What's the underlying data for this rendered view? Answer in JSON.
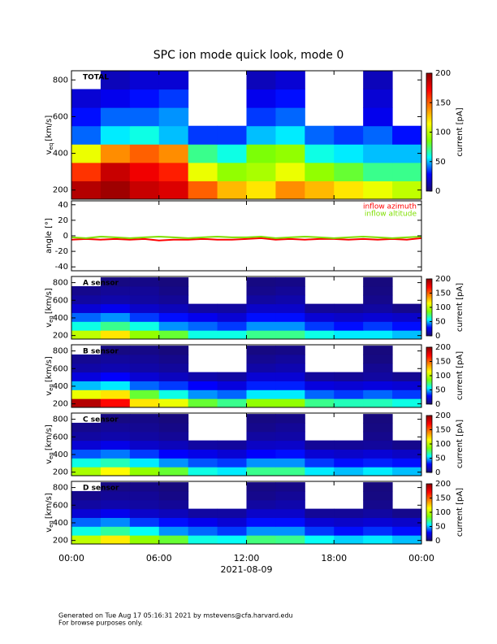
{
  "title": "SPC ion mode quick look, mode 0",
  "footer": [
    "Generated on Tue Aug 17 05:16:31 2021 by mstevens@cfa.harvard.edu",
    "For browse purposes only."
  ],
  "chart_data": [
    {
      "type": "heatmap",
      "label": "TOTAL",
      "ylabel": {
        "main": "v",
        "sub": "eq",
        "unit": "[km/s]"
      },
      "xlim": [
        0,
        24
      ],
      "xticks": [
        0,
        6,
        12,
        18,
        24
      ],
      "ylim": [
        150,
        850
      ],
      "yticks": [
        200,
        400,
        600,
        800
      ],
      "xbins": [
        0,
        2,
        4,
        6,
        8,
        10,
        12,
        14,
        16,
        18,
        20,
        22,
        24
      ],
      "ybins": [
        150,
        250,
        350,
        450,
        550,
        650,
        750,
        850
      ],
      "z": [
        [
          190,
          195,
          185,
          180,
          150,
          130,
          120,
          140,
          130,
          120,
          110,
          100
        ],
        [
          160,
          185,
          175,
          165,
          110,
          90,
          95,
          110,
          90,
          80,
          70,
          70
        ],
        [
          110,
          140,
          150,
          140,
          70,
          60,
          85,
          90,
          60,
          55,
          50,
          50
        ],
        [
          40,
          55,
          60,
          50,
          35,
          35,
          50,
          55,
          40,
          35,
          40,
          30
        ],
        [
          30,
          40,
          40,
          45,
          null,
          null,
          35,
          40,
          null,
          null,
          25,
          null
        ],
        [
          20,
          25,
          30,
          35,
          null,
          null,
          25,
          30,
          null,
          null,
          20,
          null
        ],
        [
          null,
          15,
          20,
          20,
          null,
          null,
          15,
          20,
          null,
          null,
          15,
          null
        ]
      ],
      "clim": [
        0,
        200
      ],
      "cticks": [
        0,
        50,
        100,
        150,
        200
      ],
      "clabel": "current [pA]",
      "colorscale": [
        "#1a0a6e",
        "#0000ff",
        "#00ffff",
        "#7fff00",
        "#ffff00",
        "#ff8000",
        "#ff0000",
        "#8b0000"
      ]
    },
    {
      "type": "line",
      "ylabel": "angle [°]",
      "xlim": [
        0,
        24
      ],
      "xticks": [
        0,
        6,
        12,
        18,
        24
      ],
      "ylim": [
        -45,
        45
      ],
      "yticks": [
        -40,
        -20,
        0,
        20,
        40
      ],
      "legend": "upper right",
      "x": [
        0,
        1,
        2,
        3,
        4,
        5,
        6,
        7,
        8,
        9,
        10,
        11,
        12,
        13,
        14,
        15,
        16,
        17,
        18,
        19,
        20,
        21,
        22,
        23,
        24
      ],
      "series": [
        {
          "name": "inflow azimuth",
          "color": "#ff0000",
          "values": [
            -5,
            -4,
            -5,
            -4,
            -5,
            -4,
            -6,
            -5,
            -5,
            -4,
            -5,
            -5,
            -4,
            -3,
            -5,
            -4,
            -5,
            -4,
            -4,
            -5,
            -4,
            -5,
            -4,
            -5,
            -3
          ]
        },
        {
          "name": "inflow altitude",
          "color": "#7fdf00",
          "values": [
            -2,
            -3,
            -1,
            -2,
            -3,
            -2,
            -1,
            -2,
            -3,
            -2,
            -1,
            -2,
            -2,
            -1,
            -3,
            -2,
            -1,
            -2,
            -3,
            -2,
            -1,
            -2,
            -3,
            -2,
            -1
          ]
        }
      ]
    },
    {
      "type": "heatmap",
      "label": "A sensor",
      "ylabel": {
        "main": "v",
        "sub": "eq",
        "unit": "[km/s]"
      },
      "xlim": [
        0,
        24
      ],
      "xticks": [
        0,
        6,
        12,
        18,
        24
      ],
      "ylim": [
        160,
        870
      ],
      "yticks": [
        200,
        400,
        600,
        800
      ],
      "xbins": [
        0,
        2,
        4,
        6,
        8,
        10,
        12,
        14,
        16,
        18,
        20,
        22,
        24
      ],
      "ybins": [
        160,
        260,
        360,
        460,
        560,
        660,
        760,
        860
      ],
      "z": [
        [
          100,
          120,
          90,
          80,
          60,
          60,
          70,
          70,
          60,
          55,
          55,
          50
        ],
        [
          60,
          70,
          60,
          45,
          40,
          35,
          45,
          45,
          35,
          30,
          35,
          30
        ],
        [
          40,
          45,
          35,
          30,
          25,
          20,
          30,
          30,
          20,
          18,
          20,
          18
        ],
        [
          20,
          25,
          18,
          15,
          10,
          10,
          18,
          18,
          8,
          8,
          10,
          6
        ],
        [
          10,
          12,
          10,
          8,
          null,
          null,
          10,
          12,
          null,
          null,
          6,
          null
        ],
        [
          6,
          8,
          8,
          5,
          null,
          null,
          6,
          8,
          null,
          null,
          4,
          null
        ],
        [
          null,
          4,
          5,
          3,
          null,
          null,
          4,
          5,
          null,
          null,
          3,
          null
        ]
      ],
      "clim": [
        0,
        200
      ],
      "cticks": [
        0,
        50,
        100,
        150,
        200
      ],
      "clabel": "current [pA]",
      "colorscale": [
        "#1a0a6e",
        "#0000ff",
        "#00ffff",
        "#7fff00",
        "#ffff00",
        "#ff8000",
        "#ff0000",
        "#8b0000"
      ]
    },
    {
      "type": "heatmap",
      "label": "B sensor",
      "ylabel": {
        "main": "v",
        "sub": "eq",
        "unit": "[km/s]"
      },
      "xlim": [
        0,
        24
      ],
      "xticks": [
        0,
        6,
        12,
        18,
        24
      ],
      "ylim": [
        160,
        870
      ],
      "yticks": [
        200,
        400,
        600,
        800
      ],
      "xbins": [
        0,
        2,
        4,
        6,
        8,
        10,
        12,
        14,
        16,
        18,
        20,
        22,
        24
      ],
      "ybins": [
        160,
        260,
        360,
        460,
        560,
        660,
        760,
        860
      ],
      "z": [
        [
          190,
          170,
          120,
          110,
          80,
          70,
          90,
          90,
          70,
          65,
          65,
          60
        ],
        [
          110,
          120,
          80,
          60,
          45,
          40,
          55,
          55,
          40,
          35,
          40,
          35
        ],
        [
          50,
          55,
          40,
          35,
          28,
          22,
          32,
          32,
          22,
          20,
          22,
          20
        ],
        [
          22,
          28,
          20,
          16,
          12,
          10,
          20,
          20,
          9,
          8,
          10,
          7
        ],
        [
          11,
          13,
          11,
          9,
          null,
          null,
          11,
          13,
          null,
          null,
          7,
          null
        ],
        [
          7,
          9,
          8,
          6,
          null,
          null,
          7,
          9,
          null,
          null,
          4,
          null
        ],
        [
          null,
          4,
          5,
          3,
          null,
          null,
          4,
          5,
          null,
          null,
          3,
          null
        ]
      ],
      "clim": [
        0,
        200
      ],
      "cticks": [
        0,
        50,
        100,
        150,
        200
      ],
      "clabel": "current [pA]",
      "colorscale": [
        "#1a0a6e",
        "#0000ff",
        "#00ffff",
        "#7fff00",
        "#ffff00",
        "#ff8000",
        "#ff0000",
        "#8b0000"
      ]
    },
    {
      "type": "heatmap",
      "label": "C sensor",
      "ylabel": {
        "main": "v",
        "sub": "eq",
        "unit": "[km/s]"
      },
      "xlim": [
        0,
        24
      ],
      "xticks": [
        0,
        6,
        12,
        18,
        24
      ],
      "ylim": [
        160,
        870
      ],
      "yticks": [
        200,
        400,
        600,
        800
      ],
      "xbins": [
        0,
        2,
        4,
        6,
        8,
        10,
        12,
        14,
        16,
        18,
        20,
        22,
        24
      ],
      "ybins": [
        160,
        260,
        360,
        460,
        560,
        660,
        760,
        860
      ],
      "z": [
        [
          95,
          115,
          90,
          80,
          60,
          55,
          70,
          70,
          55,
          50,
          55,
          50
        ],
        [
          60,
          65,
          55,
          45,
          38,
          35,
          45,
          45,
          35,
          30,
          32,
          30
        ],
        [
          38,
          42,
          35,
          28,
          24,
          20,
          28,
          30,
          20,
          18,
          20,
          17
        ],
        [
          20,
          24,
          18,
          15,
          10,
          9,
          17,
          18,
          8,
          8,
          9,
          6
        ],
        [
          10,
          12,
          10,
          8,
          null,
          null,
          10,
          11,
          null,
          null,
          6,
          null
        ],
        [
          6,
          8,
          7,
          5,
          null,
          null,
          6,
          8,
          null,
          null,
          4,
          null
        ],
        [
          null,
          4,
          5,
          3,
          null,
          null,
          4,
          5,
          null,
          null,
          3,
          null
        ]
      ],
      "clim": [
        0,
        200
      ],
      "cticks": [
        0,
        50,
        100,
        150,
        200
      ],
      "clabel": "current [pA]",
      "colorscale": [
        "#1a0a6e",
        "#0000ff",
        "#00ffff",
        "#7fff00",
        "#ffff00",
        "#ff8000",
        "#ff0000",
        "#8b0000"
      ]
    },
    {
      "type": "heatmap",
      "label": "D sensor",
      "ylabel": {
        "main": "v",
        "sub": "eq",
        "unit": "[km/s]"
      },
      "xlim": [
        0,
        24
      ],
      "xticks": [
        {
          "value": 0,
          "label": "00:00"
        },
        {
          "value": 6,
          "label": "06:00"
        },
        {
          "value": 12,
          "label": "12:00"
        },
        {
          "value": 18,
          "label": "18:00"
        },
        {
          "value": 24,
          "label": "00:00"
        }
      ],
      "xlabel": "2021-08-09",
      "ylim": [
        160,
        870
      ],
      "yticks": [
        200,
        400,
        600,
        800
      ],
      "xbins": [
        0,
        2,
        4,
        6,
        8,
        10,
        12,
        14,
        16,
        18,
        20,
        22,
        24
      ],
      "ybins": [
        160,
        260,
        360,
        460,
        560,
        660,
        760,
        860
      ],
      "z": [
        [
          100,
          118,
          90,
          80,
          60,
          58,
          72,
          70,
          58,
          52,
          55,
          50
        ],
        [
          60,
          68,
          58,
          45,
          40,
          35,
          45,
          45,
          35,
          30,
          34,
          30
        ],
        [
          40,
          44,
          35,
          30,
          25,
          20,
          30,
          30,
          20,
          18,
          20,
          18
        ],
        [
          20,
          25,
          18,
          15,
          10,
          10,
          18,
          18,
          8,
          8,
          10,
          6
        ],
        [
          10,
          12,
          10,
          8,
          null,
          null,
          10,
          12,
          null,
          null,
          6,
          null
        ],
        [
          6,
          8,
          8,
          5,
          null,
          null,
          6,
          8,
          null,
          null,
          4,
          null
        ],
        [
          null,
          4,
          5,
          3,
          null,
          null,
          4,
          5,
          null,
          null,
          3,
          null
        ]
      ],
      "clim": [
        0,
        200
      ],
      "cticks": [
        0,
        50,
        100,
        150,
        200
      ],
      "clabel": "current [pA]",
      "colorscale": [
        "#1a0a6e",
        "#0000ff",
        "#00ffff",
        "#7fff00",
        "#ffff00",
        "#ff8000",
        "#ff0000",
        "#8b0000"
      ]
    }
  ]
}
